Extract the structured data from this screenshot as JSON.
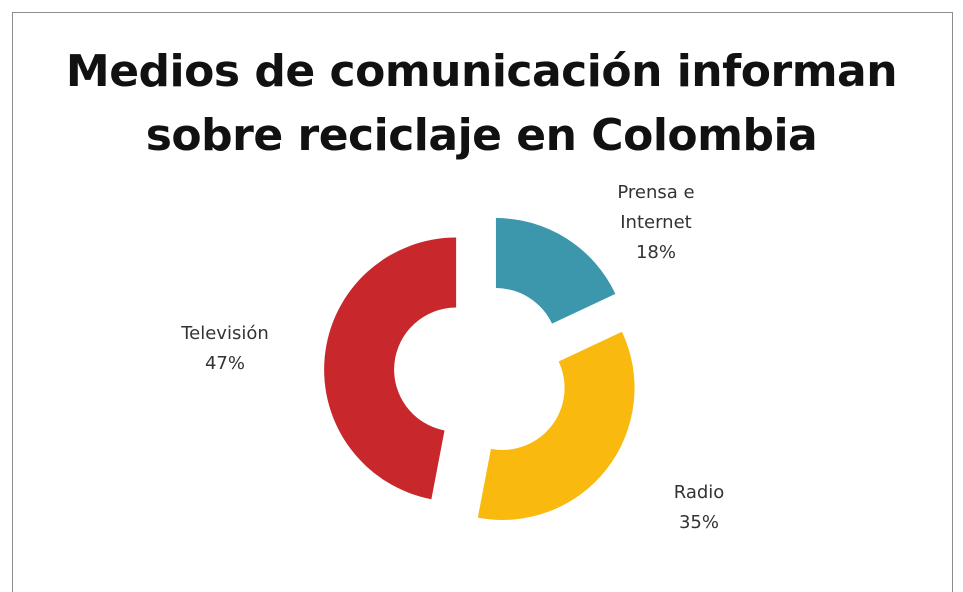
{
  "chart_data": {
    "type": "pie",
    "style": "doughnut-exploded",
    "title_lines": [
      "Medios de comunicación informan",
      "sobre reciclaje en Colombia"
    ],
    "slices": [
      {
        "label_lines": [
          "Prensa e",
          "Internet"
        ],
        "value": 18,
        "value_label": "18%",
        "color": "#3c96ac"
      },
      {
        "label_lines": [
          "Radio"
        ],
        "value": 35,
        "value_label": "35%",
        "color": "#f9b90f"
      },
      {
        "label_lines": [
          "Televisión"
        ],
        "value": 47,
        "value_label": "47%",
        "color": "#c8282b"
      }
    ],
    "legend": "none"
  }
}
